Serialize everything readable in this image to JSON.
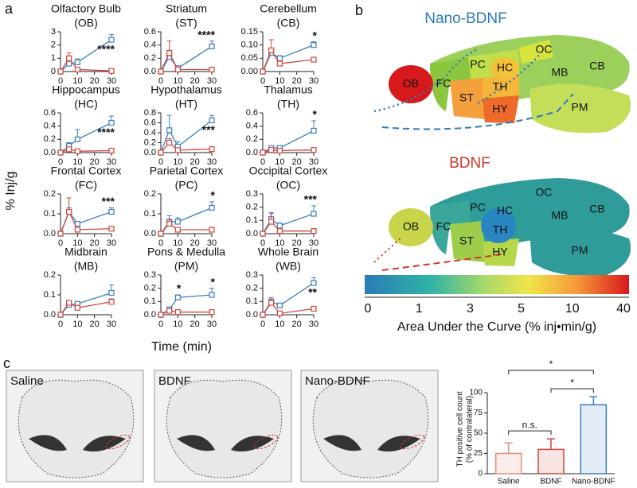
{
  "panel_a": {
    "label": "a",
    "ylabel": "% Inj/g",
    "xlabel": "Time (min)",
    "charts": [
      {
        "type": "line",
        "title": "Olfactory Bulb",
        "subtitle": "(OB)",
        "x": [
          0,
          5,
          10,
          30
        ],
        "xlim": [
          0,
          30
        ],
        "xticks": [
          0,
          10,
          20,
          30
        ],
        "ylim": [
          0,
          3
        ],
        "yticks": [
          0,
          1,
          2,
          3
        ],
        "series": [
          {
            "color": "#3a7fc1",
            "values": [
              0,
              0.6,
              0.7,
              2.4
            ],
            "errors": [
              0,
              0.1,
              0.25,
              0.4
            ]
          },
          {
            "color": "#d0473c",
            "values": [
              0,
              1.0,
              0.15,
              0.05
            ],
            "errors": [
              0,
              0.4,
              0.1,
              0.05
            ]
          }
        ],
        "annotations": [
          {
            "text": "****",
            "x": 30
          }
        ]
      },
      {
        "type": "line",
        "title": "Striatum",
        "subtitle": "(ST)",
        "x": [
          0,
          5,
          10,
          30
        ],
        "xlim": [
          0,
          30
        ],
        "xticks": [
          0,
          10,
          20,
          30
        ],
        "ylim": [
          0,
          0.6
        ],
        "yticks": [
          {
            "value": 0,
            "label": "0.0"
          },
          0.2,
          0.4,
          0.6
        ],
        "series": [
          {
            "color": "#3a7fc1",
            "values": [
              0,
              0.22,
              0.05,
              0.38
            ],
            "errors": [
              0,
              0.1,
              0.02,
              0.08
            ]
          },
          {
            "color": "#d0473c",
            "values": [
              0,
              0.28,
              0.03,
              0.03
            ],
            "errors": [
              0,
              0.18,
              0.02,
              0.02
            ]
          }
        ],
        "annotations": [
          {
            "text": "****",
            "x": 30
          }
        ]
      },
      {
        "type": "line",
        "title": "Cerebellum",
        "subtitle": "(CB)",
        "x": [
          0,
          5,
          10,
          30
        ],
        "xlim": [
          0,
          30
        ],
        "xticks": [
          0,
          10,
          20,
          30
        ],
        "ylim": [
          0,
          0.15
        ],
        "yticks": [
          {
            "value": 0,
            "label": "0.00"
          },
          0.05,
          {
            "value": 0.1,
            "label": "0.10"
          },
          0.15
        ],
        "series": [
          {
            "color": "#3a7fc1",
            "values": [
              0,
              0.07,
              0.05,
              0.1
            ],
            "errors": [
              0,
              0.01,
              0.01,
              0.012
            ]
          },
          {
            "color": "#d0473c",
            "values": [
              0,
              0.08,
              0.03,
              0.045
            ],
            "errors": [
              0,
              0.04,
              0.01,
              0.008
            ]
          }
        ],
        "annotations": [
          {
            "text": "*",
            "x": 30
          }
        ]
      },
      {
        "type": "line",
        "title": "Hippocampus",
        "subtitle": "(HC)",
        "x": [
          0,
          5,
          10,
          30
        ],
        "xlim": [
          0,
          30
        ],
        "xticks": [
          0,
          10,
          20,
          30
        ],
        "ylim": [
          0,
          0.6
        ],
        "yticks": [
          {
            "value": 0,
            "label": "0.0"
          },
          0.2,
          0.4,
          0.6
        ],
        "series": [
          {
            "color": "#3a7fc1",
            "values": [
              0,
              0.1,
              0.2,
              0.45
            ],
            "errors": [
              0,
              0.05,
              0.15,
              0.1
            ]
          },
          {
            "color": "#d0473c",
            "values": [
              0,
              0.05,
              0.02,
              0.03
            ],
            "errors": [
              0,
              0.03,
              0.01,
              0.01
            ]
          }
        ],
        "annotations": [
          {
            "text": "****",
            "x": 30
          }
        ]
      },
      {
        "type": "line",
        "title": "Hypothalamus",
        "subtitle": "(HT)",
        "x": [
          0,
          5,
          10,
          30
        ],
        "xlim": [
          0,
          30
        ],
        "xticks": [
          0,
          10,
          20,
          30
        ],
        "ylim": [
          0,
          0.8
        ],
        "yticks": [
          {
            "value": 0,
            "label": "0.0"
          },
          0.2,
          0.4,
          0.6,
          0.8
        ],
        "series": [
          {
            "color": "#3a7fc1",
            "values": [
              0,
              0.45,
              0.12,
              0.65
            ],
            "errors": [
              0,
              0.3,
              0.1,
              0.1
            ]
          },
          {
            "color": "#d0473c",
            "values": [
              0,
              0.2,
              0.05,
              0.07
            ],
            "errors": [
              0,
              0.08,
              0.02,
              0.02
            ]
          }
        ],
        "annotations": [
          {
            "text": "***",
            "x": 30
          }
        ]
      },
      {
        "type": "line",
        "title": "Thalamus",
        "subtitle": "(TH)",
        "x": [
          0,
          5,
          10,
          30
        ],
        "xlim": [
          0,
          30
        ],
        "xticks": [
          0,
          10,
          20,
          30
        ],
        "ylim": [
          0,
          0.6
        ],
        "yticks": [
          {
            "value": 0,
            "label": "0.0"
          },
          0.2,
          0.4,
          0.6
        ],
        "series": [
          {
            "color": "#3a7fc1",
            "values": [
              0,
              0.07,
              0.07,
              0.33
            ],
            "errors": [
              0,
              0.03,
              0.03,
              0.15
            ]
          },
          {
            "color": "#d0473c",
            "values": [
              0,
              0.04,
              0.03,
              0.04
            ],
            "errors": [
              0,
              0.02,
              0.01,
              0.01
            ]
          }
        ],
        "annotations": [
          {
            "text": "*",
            "x": 30
          }
        ]
      },
      {
        "type": "line",
        "title": "Frontal Cortex",
        "subtitle": "(FC)",
        "x": [
          0,
          5,
          10,
          30
        ],
        "xlim": [
          0,
          30
        ],
        "xticks": [
          0,
          10,
          20,
          30
        ],
        "ylim": [
          0,
          0.2
        ],
        "yticks": [
          {
            "value": 0,
            "label": "0.0"
          },
          0.1,
          0.2
        ],
        "series": [
          {
            "color": "#3a7fc1",
            "values": [
              0,
              0.11,
              0.05,
              0.11
            ],
            "errors": [
              0,
              0.02,
              0.01,
              0.02
            ]
          },
          {
            "color": "#d0473c",
            "values": [
              0,
              0.11,
              0.02,
              0.025
            ],
            "errors": [
              0,
              0.07,
              0.01,
              0.005
            ]
          }
        ],
        "annotations": [
          {
            "text": "***",
            "x": 30
          }
        ]
      },
      {
        "type": "line",
        "title": "Parietal Cortex",
        "subtitle": "(PC)",
        "x": [
          0,
          5,
          10,
          30
        ],
        "xlim": [
          0,
          30
        ],
        "xticks": [
          0,
          10,
          20,
          30
        ],
        "ylim": [
          0,
          0.2
        ],
        "yticks": [
          {
            "value": 0,
            "label": "0.0"
          },
          0.1,
          0.2
        ],
        "series": [
          {
            "color": "#3a7fc1",
            "values": [
              0,
              0.06,
              0.06,
              0.13
            ],
            "errors": [
              0,
              0.03,
              0.02,
              0.03
            ]
          },
          {
            "color": "#d0473c",
            "values": [
              0,
              0.05,
              0.02,
              0.02
            ],
            "errors": [
              0,
              0.02,
              0.01,
              0.005
            ]
          }
        ],
        "annotations": [
          {
            "text": "*",
            "x": 30
          }
        ]
      },
      {
        "type": "line",
        "title": "Occipital Cortex",
        "subtitle": "(OC)",
        "x": [
          0,
          5,
          10,
          30
        ],
        "xlim": [
          0,
          30
        ],
        "xticks": [
          0,
          10,
          20,
          30
        ],
        "ylim": [
          0,
          0.3
        ],
        "yticks": [
          {
            "value": 0,
            "label": "0.0"
          },
          0.1,
          0.2,
          0.3
        ],
        "series": [
          {
            "color": "#3a7fc1",
            "values": [
              0,
              0.11,
              0.06,
              0.15
            ],
            "errors": [
              0,
              0.05,
              0.02,
              0.06
            ]
          },
          {
            "color": "#d0473c",
            "values": [
              0,
              0.09,
              0.02,
              0.02
            ],
            "errors": [
              0,
              0.06,
              0.01,
              0.005
            ]
          }
        ],
        "annotations": [
          {
            "text": "***",
            "x": 30
          }
        ]
      },
      {
        "type": "line",
        "title": "Midbrain",
        "subtitle": "(MB)",
        "x": [
          0,
          5,
          10,
          30
        ],
        "xlim": [
          0,
          30
        ],
        "xticks": [
          0,
          10,
          20,
          30
        ],
        "ylim": [
          0,
          0.2
        ],
        "yticks": [
          {
            "value": 0,
            "label": "0.0"
          },
          0.1,
          0.2
        ],
        "series": [
          {
            "color": "#3a7fc1",
            "values": [
              0,
              0.05,
              0.055,
              0.11
            ],
            "errors": [
              0,
              0.02,
              0.01,
              0.04
            ]
          },
          {
            "color": "#d0473c",
            "values": [
              0,
              0.06,
              0.035,
              0.065
            ],
            "errors": [
              0,
              0.01,
              0.005,
              0.015
            ]
          }
        ],
        "annotations": []
      },
      {
        "type": "line",
        "title": "Pons & Medulla",
        "subtitle": "(PM)",
        "x": [
          0,
          5,
          10,
          30
        ],
        "xlim": [
          0,
          30
        ],
        "xticks": [
          0,
          10,
          20,
          30
        ],
        "ylim": [
          0,
          0.3
        ],
        "yticks": [
          {
            "value": 0,
            "label": "0.0"
          },
          0.1,
          0.2,
          0.3
        ],
        "series": [
          {
            "color": "#3a7fc1",
            "values": [
              0,
              0.04,
              0.13,
              0.15
            ],
            "errors": [
              0,
              0.01,
              0.02,
              0.05
            ]
          },
          {
            "color": "#d0473c",
            "values": [
              0,
              0.03,
              0.02,
              0.02
            ],
            "errors": [
              0,
              0.01,
              0.005,
              0.005
            ]
          }
        ],
        "annotations": [
          {
            "text": "*",
            "x": 10
          },
          {
            "text": "*",
            "x": 30
          }
        ]
      },
      {
        "type": "line",
        "title": "Whole Brain",
        "subtitle": "(WB)",
        "x": [
          0,
          5,
          10,
          30
        ],
        "xlim": [
          0,
          30
        ],
        "xticks": [
          0,
          10,
          20,
          30
        ],
        "ylim": [
          0,
          0.3
        ],
        "yticks": [
          {
            "value": 0,
            "label": "0.0"
          },
          0.1,
          0.2,
          0.3
        ],
        "series": [
          {
            "color": "#3a7fc1",
            "values": [
              0,
              0.1,
              0.07,
              0.24
            ],
            "errors": [
              0,
              0.03,
              0.01,
              0.04
            ]
          },
          {
            "color": "#d0473c",
            "values": [
              0,
              0.09,
              0.01,
              0.045
            ],
            "errors": [
              0,
              0.02,
              0.005,
              0.01
            ]
          }
        ],
        "annotations": [
          {
            "text": "**",
            "x": 30
          }
        ]
      }
    ]
  },
  "panel_b": {
    "label": "b",
    "top_title": "Nano-BDNF",
    "bottom_title": "BDNF",
    "regions": [
      "OB",
      "FC",
      "PC",
      "HC",
      "OC",
      "TH",
      "ST",
      "HY",
      "MB",
      "CB",
      "PM"
    ],
    "colorbar": {
      "ticks": [
        0,
        1,
        3,
        5,
        10,
        40
      ],
      "label": "Area Under the Curve (% inj•min/g)"
    }
  },
  "panel_c": {
    "label": "c",
    "images": [
      "Saline",
      "BDNF",
      "Nano-BDNF"
    ],
    "chart": {
      "type": "bar",
      "ylabel": "TH positive cell count",
      "ylabel2": "(% of contralateral)",
      "categories": [
        "Saline",
        "BDNF",
        "Nano-BDNF"
      ],
      "values": [
        25,
        30,
        85
      ],
      "errors": [
        13,
        13,
        10
      ],
      "colors": [
        "#e58a73",
        "#d0473c",
        "#3a7fc1"
      ],
      "ylim": [
        0,
        100
      ],
      "yticks": [
        0,
        25,
        50,
        75,
        100
      ],
      "comparisons": [
        {
          "label": "n.s.",
          "pair": [
            0,
            1
          ]
        },
        {
          "label": "*",
          "pair": [
            1,
            2
          ]
        },
        {
          "label": "*",
          "pair": [
            0,
            2
          ]
        }
      ]
    }
  }
}
